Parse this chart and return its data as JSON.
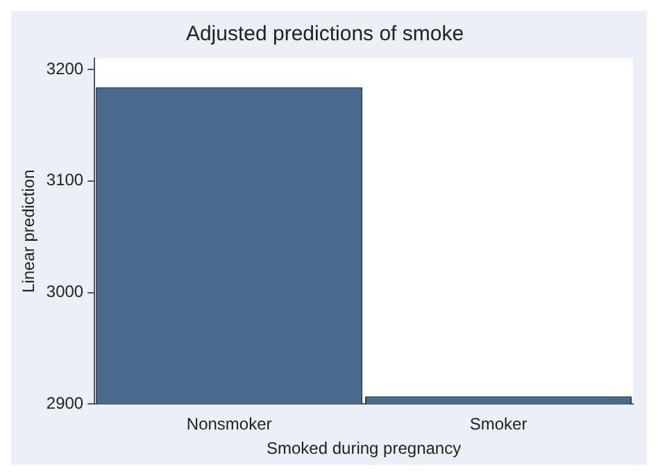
{
  "chart_data": {
    "type": "bar",
    "title": "Adjusted predictions of smoke",
    "xlabel": "Smoked during pregnancy",
    "ylabel": "Linear prediction",
    "categories": [
      "Nonsmoker",
      "Smoker"
    ],
    "series": [
      {
        "color": "#4a6a8b",
        "values": [
          3184,
          2907
        ]
      }
    ],
    "ylim": [
      2900,
      3210
    ],
    "yticks": [
      2900,
      3000,
      3100,
      3200
    ],
    "grid": false,
    "legend": false
  }
}
